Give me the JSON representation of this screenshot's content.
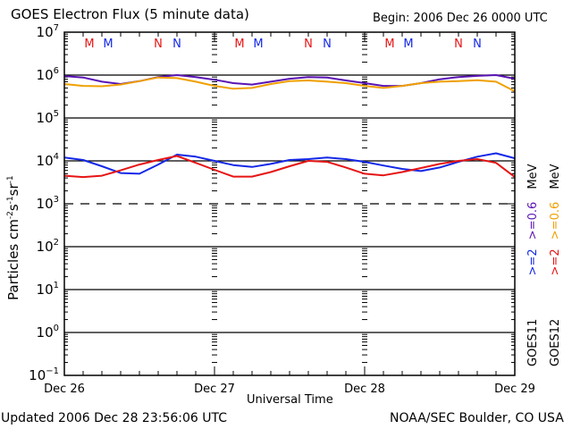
{
  "header": {
    "title": "GOES Electron Flux (5 minute data)",
    "begin": "Begin: 2006 Dec 26 0000 UTC"
  },
  "footer": {
    "updated": "Updated 2006 Dec 28 23:56:06 UTC",
    "credit": "NOAA/SEC Boulder, CO USA"
  },
  "legend": {
    "goes11": {
      "satellite": "GOES11",
      "low": ">=2",
      "high": ">=0.6",
      "unit": "MeV",
      "low_color": "#1428e6",
      "high_color": "#5a14b4"
    },
    "goes12": {
      "satellite": "GOES12",
      "low": ">=2",
      "high": ">=0.6",
      "unit": "MeV",
      "low_color": "#e61414",
      "high_color": "#f0a000"
    }
  },
  "chart_data": {
    "type": "line",
    "title": "GOES Electron Flux (5 minute data)",
    "xlabel": "Universal Time",
    "ylabel": "Particles cm⁻²s⁻¹sr⁻¹",
    "yscale": "log",
    "ylim": [
      0.1,
      10000000
    ],
    "xlim_hours": [
      0,
      72
    ],
    "x_tick_labels": [
      "Dec 26",
      "Dec 27",
      "Dec 28",
      "Dec 29"
    ],
    "x_tick_hours": [
      0,
      24,
      48,
      72
    ],
    "y_tick_labels": [
      {
        "base": "10",
        "exp": "7",
        "value": 10000000
      },
      {
        "base": "10",
        "exp": "6",
        "value": 1000000
      },
      {
        "base": "10",
        "exp": "5",
        "value": 100000
      },
      {
        "base": "10",
        "exp": "4",
        "value": 10000
      },
      {
        "base": "10",
        "exp": "3",
        "value": 1000
      },
      {
        "base": "10",
        "exp": "2",
        "value": 100
      },
      {
        "base": "10",
        "exp": "1",
        "value": 10
      },
      {
        "base": "10",
        "exp": "0",
        "value": 1
      },
      {
        "base": "10",
        "exp": "-1",
        "value": 0.1
      }
    ],
    "grid": "horizontal at each decade; dashed at 10^3",
    "threshold_line": 1000,
    "markers": [
      {
        "label": "M",
        "hour": 4.0,
        "color": "#e61414"
      },
      {
        "label": "M",
        "hour": 7.0,
        "color": "#1428e6"
      },
      {
        "label": "N",
        "hour": 15.0,
        "color": "#e61414"
      },
      {
        "label": "N",
        "hour": 18.0,
        "color": "#1428e6"
      },
      {
        "label": "M",
        "hour": 28.0,
        "color": "#e61414"
      },
      {
        "label": "M",
        "hour": 31.0,
        "color": "#1428e6"
      },
      {
        "label": "N",
        "hour": 39.0,
        "color": "#e61414"
      },
      {
        "label": "N",
        "hour": 42.0,
        "color": "#1428e6"
      },
      {
        "label": "M",
        "hour": 52.0,
        "color": "#e61414"
      },
      {
        "label": "M",
        "hour": 55.0,
        "color": "#1428e6"
      },
      {
        "label": "N",
        "hour": 63.0,
        "color": "#e61414"
      },
      {
        "label": "N",
        "hour": 66.0,
        "color": "#1428e6"
      }
    ],
    "x_hours": [
      0,
      3,
      6,
      9,
      12,
      15,
      18,
      21,
      24,
      27,
      30,
      33,
      36,
      39,
      42,
      45,
      48,
      51,
      54,
      57,
      60,
      63,
      66,
      69,
      72
    ],
    "series": [
      {
        "name": "GOES11 >=0.6 MeV",
        "color": "#5a14b4",
        "values": [
          950000,
          880000,
          700000,
          620000,
          720000,
          900000,
          1000000,
          900000,
          780000,
          650000,
          600000,
          700000,
          820000,
          900000,
          880000,
          750000,
          650000,
          560000,
          560000,
          650000,
          800000,
          900000,
          960000,
          1000000,
          820000
        ]
      },
      {
        "name": "GOES11 >=2 MeV",
        "color": "#1428e6",
        "values": [
          12000,
          10500,
          7500,
          5200,
          5000,
          8200,
          14000,
          12500,
          10000,
          8000,
          7200,
          8500,
          10500,
          11000,
          12000,
          11000,
          9500,
          7800,
          6500,
          5800,
          7000,
          9500,
          12500,
          15000,
          11500
        ]
      },
      {
        "name": "GOES12 >=0.6 MeV",
        "color": "#f0a000",
        "values": [
          620000,
          560000,
          550000,
          600000,
          720000,
          880000,
          850000,
          700000,
          560000,
          480000,
          500000,
          620000,
          720000,
          750000,
          700000,
          650000,
          560000,
          500000,
          560000,
          650000,
          700000,
          720000,
          760000,
          700000,
          420000
        ]
      },
      {
        "name": "GOES12 >=2 MeV",
        "color": "#e61414",
        "values": [
          4500,
          4200,
          4500,
          6000,
          8200,
          10500,
          13000,
          9000,
          6200,
          4300,
          4300,
          5500,
          7500,
          10000,
          9500,
          7000,
          5000,
          4600,
          5500,
          6800,
          8500,
          10000,
          11000,
          9000,
          4200
        ]
      }
    ]
  }
}
